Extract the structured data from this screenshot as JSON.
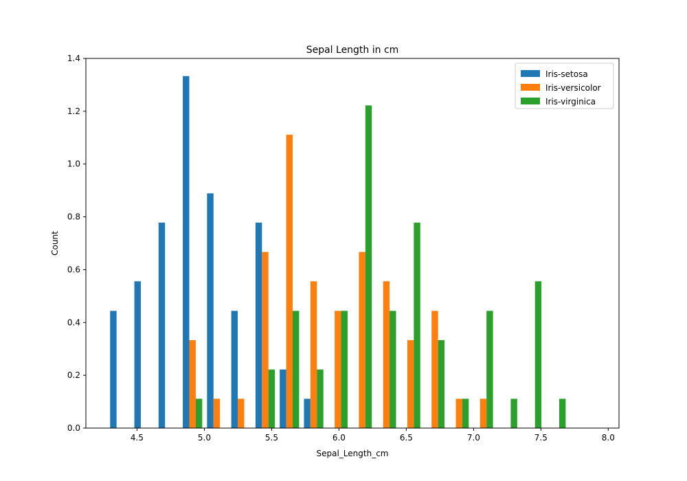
{
  "chart_data": {
    "type": "bar",
    "title": "Sepal Length in cm",
    "xlabel": "Sepal_Length_cm",
    "ylabel": "Count",
    "xlim": [
      4.12,
      8.08
    ],
    "ylim": [
      0,
      1.4
    ],
    "xticks": [
      "4.5",
      "5.0",
      "5.5",
      "6.0",
      "6.5",
      "7.0",
      "7.5",
      "8.0"
    ],
    "yticks": [
      "0.0",
      "0.2",
      "0.4",
      "0.6",
      "0.8",
      "1.0",
      "1.2",
      "1.4"
    ],
    "bin_edges": [
      4.3,
      4.48,
      4.66,
      4.84,
      5.02,
      5.2,
      5.38,
      5.56,
      5.74,
      5.92,
      6.1,
      6.28,
      6.46,
      6.64,
      6.82,
      7.0,
      7.18,
      7.36,
      7.54,
      7.72,
      7.9
    ],
    "legend_position": "top-right",
    "grid": false,
    "series": [
      {
        "name": "Iris-setosa",
        "color": "#1f77b4",
        "values": [
          0.444,
          0.556,
          0.778,
          1.333,
          0.889,
          0.444,
          0.778,
          0.222,
          0.111,
          0,
          0,
          0,
          0,
          0,
          0,
          0,
          0,
          0,
          0,
          0
        ]
      },
      {
        "name": "Iris-versicolor",
        "color": "#ff7f0e",
        "values": [
          0,
          0,
          0,
          0.333,
          0.111,
          0.111,
          0.667,
          1.111,
          0.556,
          0.444,
          0.667,
          0.556,
          0.333,
          0.444,
          0.111,
          0.111,
          0,
          0,
          0,
          0
        ]
      },
      {
        "name": "Iris-virginica",
        "color": "#2ca02c",
        "values": [
          0,
          0,
          0,
          0.111,
          0,
          0,
          0.222,
          0.444,
          0.222,
          0.444,
          1.222,
          0.444,
          0.778,
          0.333,
          0.111,
          0.444,
          0.111,
          0.556,
          0.111,
          0
        ]
      }
    ]
  }
}
